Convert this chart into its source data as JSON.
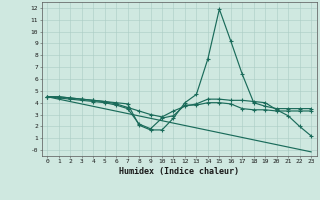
{
  "xlabel": "Humidex (Indice chaleur)",
  "background_color": "#cfe8e0",
  "grid_color": "#aaccC4",
  "line_color": "#1a6b5a",
  "xlim": [
    -0.5,
    23.5
  ],
  "ylim": [
    -0.5,
    12.5
  ],
  "xticks": [
    0,
    1,
    2,
    3,
    4,
    5,
    6,
    7,
    8,
    9,
    10,
    11,
    12,
    13,
    14,
    15,
    16,
    17,
    18,
    19,
    20,
    21,
    22,
    23
  ],
  "yticks": [
    0,
    1,
    2,
    3,
    4,
    5,
    6,
    7,
    8,
    9,
    10,
    11,
    12
  ],
  "ytick_labels": [
    "-0",
    "1",
    "2",
    "3",
    "4",
    "5",
    "6",
    "7",
    "8",
    "9",
    "10",
    "11",
    "12"
  ],
  "line1_x": [
    0,
    1,
    2,
    3,
    4,
    5,
    6,
    7,
    8,
    9,
    10,
    11,
    12,
    13,
    14,
    15,
    16,
    17,
    18,
    19,
    20,
    21,
    22,
    23
  ],
  "line1_y": [
    4.5,
    4.5,
    4.4,
    4.3,
    4.2,
    4.1,
    4.0,
    3.9,
    2.1,
    1.7,
    1.7,
    2.7,
    4.0,
    4.7,
    7.7,
    11.9,
    9.2,
    6.4,
    4.0,
    3.7,
    3.5,
    3.5,
    3.5,
    3.5
  ],
  "line2_x": [
    0,
    1,
    2,
    3,
    4,
    5,
    6,
    7,
    8,
    9,
    10,
    11,
    12,
    13,
    14,
    15,
    16,
    17,
    18,
    19,
    20,
    21,
    22,
    23
  ],
  "line2_y": [
    4.5,
    4.5,
    4.4,
    4.3,
    4.2,
    4.1,
    3.9,
    3.6,
    3.3,
    3.0,
    2.8,
    3.3,
    3.7,
    3.9,
    4.3,
    4.3,
    4.2,
    4.2,
    4.1,
    4.0,
    3.4,
    2.9,
    2.0,
    1.2
  ],
  "line3_x": [
    0,
    1,
    2,
    3,
    4,
    5,
    6,
    7,
    8,
    9,
    10,
    11,
    12,
    13,
    14,
    15,
    16,
    17,
    18,
    19,
    20,
    21,
    22,
    23
  ],
  "line3_y": [
    4.5,
    4.4,
    4.3,
    4.2,
    4.1,
    4.0,
    3.8,
    3.5,
    2.2,
    1.8,
    2.7,
    2.9,
    3.8,
    3.8,
    4.0,
    4.0,
    3.9,
    3.5,
    3.4,
    3.4,
    3.3,
    3.3,
    3.3,
    3.3
  ],
  "line4_x": [
    0,
    23
  ],
  "line4_y": [
    4.5,
    -0.15
  ]
}
